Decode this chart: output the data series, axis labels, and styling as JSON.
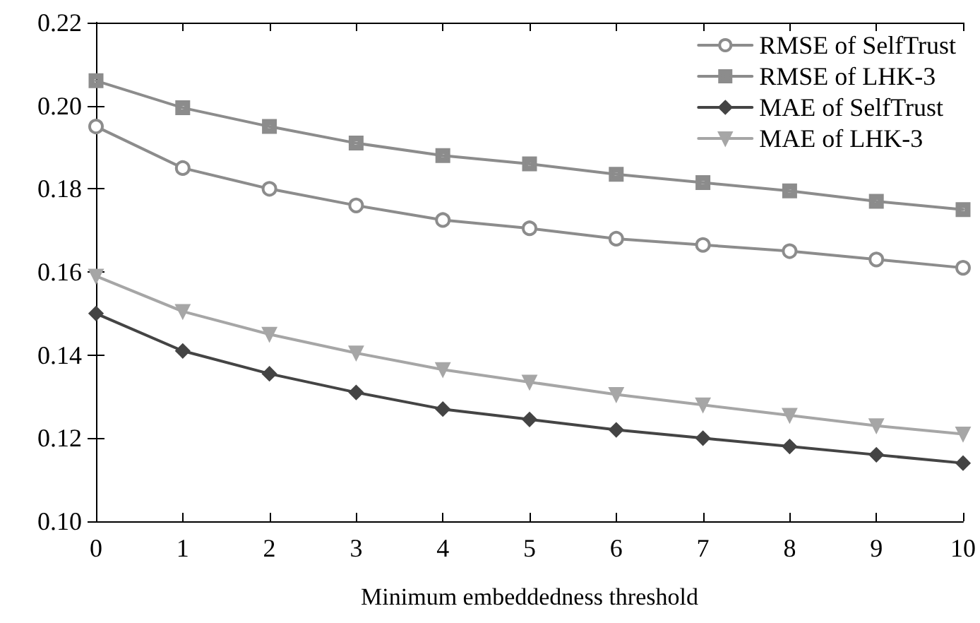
{
  "chart_data": {
    "type": "line",
    "xlabel": "Minimum embeddedness threshold",
    "x": [
      0,
      1,
      2,
      3,
      4,
      5,
      6,
      7,
      8,
      9,
      10
    ],
    "series": [
      {
        "name": "RMSE of SelfTrust",
        "color": "#8c8c8c",
        "marker": "circle",
        "values": [
          0.195,
          0.185,
          0.18,
          0.176,
          0.1725,
          0.1705,
          0.168,
          0.1665,
          0.165,
          0.163,
          0.161
        ]
      },
      {
        "name": "RMSE of LHK-3",
        "color": "#8c8c8c",
        "marker": "square",
        "values": [
          0.206,
          0.1995,
          0.195,
          0.191,
          0.188,
          0.186,
          0.1835,
          0.1815,
          0.1795,
          0.177,
          0.175
        ]
      },
      {
        "name": "MAE of SelfTrust",
        "color": "#444444",
        "marker": "diamond",
        "values": [
          0.15,
          0.141,
          0.1355,
          0.131,
          0.127,
          0.1245,
          0.122,
          0.12,
          0.118,
          0.116,
          0.114
        ]
      },
      {
        "name": "MAE of LHK-3",
        "color": "#a6a6a6",
        "marker": "triangle",
        "values": [
          0.159,
          0.1505,
          0.145,
          0.1405,
          0.1365,
          0.1335,
          0.1305,
          0.128,
          0.1255,
          0.123,
          0.121
        ]
      }
    ],
    "xlim": [
      0,
      10
    ],
    "xticks": [
      0,
      1,
      2,
      3,
      4,
      5,
      6,
      7,
      8,
      9,
      10
    ],
    "ylim": [
      0.1,
      0.22
    ],
    "yticks": [
      {
        "value": 0.1,
        "label": "0.10"
      },
      {
        "value": 0.12,
        "label": "0.12"
      },
      {
        "value": 0.14,
        "label": "0.14"
      },
      {
        "value": 0.16,
        "label": "0.16"
      },
      {
        "value": 0.18,
        "label": "0.18"
      },
      {
        "value": 0.2,
        "label": "0.20"
      },
      {
        "value": 0.22,
        "label": "0.22"
      }
    ],
    "grid": false,
    "legend": "top right",
    "line_style": "solid"
  }
}
